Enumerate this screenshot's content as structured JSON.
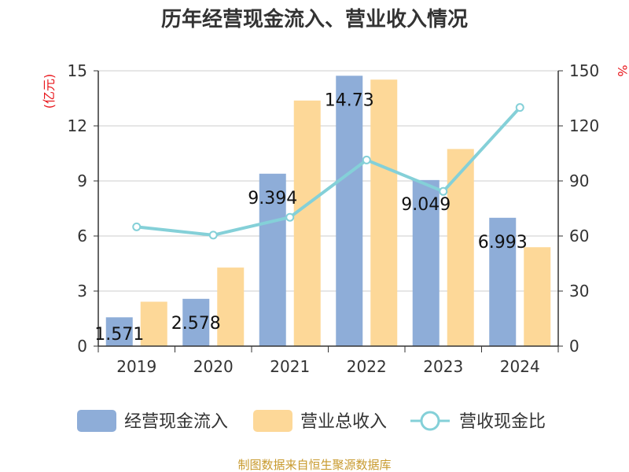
{
  "chart_data": {
    "type": "bar",
    "title": "历年经营现金流入、营业收入情况",
    "categories": [
      "2019",
      "2020",
      "2021",
      "2022",
      "2023",
      "2024"
    ],
    "y_left": {
      "unit": "(亿元)",
      "min": 0,
      "max": 15,
      "ticks": [
        "0",
        "3",
        "6",
        "9",
        "12",
        "15"
      ]
    },
    "y_right": {
      "unit": "%",
      "min": 0,
      "max": 150,
      "ticks": [
        "0",
        "30",
        "60",
        "90",
        "120",
        "150"
      ]
    },
    "series": [
      {
        "name": "经营现金流入",
        "kind": "bar",
        "axis": "left",
        "color": "#8eadd8",
        "values": [
          1.571,
          2.578,
          9.394,
          14.73,
          9.049,
          6.993
        ],
        "labels": [
          "1.571",
          "2.578",
          "9.394",
          "14.73",
          "9.049",
          "6.993"
        ]
      },
      {
        "name": "营业总收入",
        "kind": "bar",
        "axis": "left",
        "color": "#fdd898",
        "values": [
          2.42,
          4.28,
          13.38,
          14.52,
          10.74,
          5.39
        ]
      },
      {
        "name": "营收现金比",
        "kind": "line",
        "axis": "right",
        "color": "#84d0d8",
        "values": [
          65,
          60.5,
          70.2,
          101.4,
          84.3,
          130
        ]
      }
    ],
    "grid": true,
    "legend_position": "bottom"
  },
  "source": "制图数据来自恒生聚源数据库"
}
